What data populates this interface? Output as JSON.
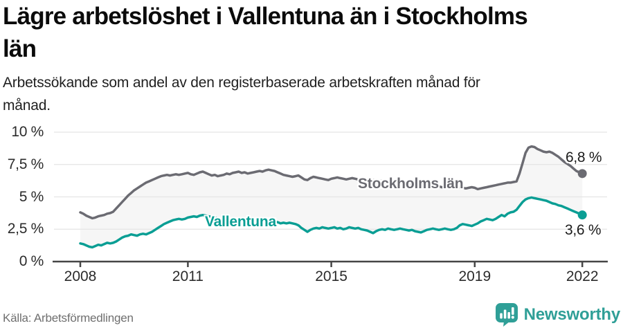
{
  "header": {
    "title_line1": "Lägre arbetslöshet i Vallentuna än i Stockholms",
    "title_line2": "län",
    "subtitle_line1": "Arbetssökande som andel av den registerbaserade arbetskraften månad för",
    "subtitle_line2": "månad."
  },
  "chart_data": {
    "type": "line",
    "title": "Lägre arbetslöshet i Vallentuna än i Stockholms län",
    "subtitle": "Arbetssökande som andel av den registerbaserade arbetskraften månad för månad.",
    "x_start_year": 2008,
    "frequency": "monthly",
    "ylim": [
      0,
      10
    ],
    "grid": true,
    "grid_color": "#e4e4e4",
    "axis_color": "#454545",
    "fill_between_color": "#f6f6f6",
    "y_ticks": [
      {
        "value": 0,
        "label": "0 %"
      },
      {
        "value": 2.5,
        "label": "2,5 %"
      },
      {
        "value": 5,
        "label": "5 %"
      },
      {
        "value": 7.5,
        "label": "7,5 %"
      },
      {
        "value": 10,
        "label": "10 %"
      }
    ],
    "x_ticks": [
      {
        "value": 2008,
        "label": "2008"
      },
      {
        "value": 2011,
        "label": "2011"
      },
      {
        "value": 2015,
        "label": "2015"
      },
      {
        "value": 2019,
        "label": "2019"
      },
      {
        "value": 2022,
        "label": "2022"
      }
    ],
    "series": [
      {
        "name": "Stockholms län",
        "color": "#6b6b72",
        "end_label": "6,8 %",
        "end_value": 6.8,
        "values": [
          3.8,
          3.7,
          3.55,
          3.45,
          3.35,
          3.4,
          3.5,
          3.55,
          3.6,
          3.7,
          3.75,
          3.85,
          4.1,
          4.35,
          4.6,
          4.85,
          5.1,
          5.3,
          5.5,
          5.65,
          5.8,
          5.95,
          6.1,
          6.2,
          6.3,
          6.4,
          6.5,
          6.6,
          6.65,
          6.7,
          6.65,
          6.7,
          6.75,
          6.7,
          6.75,
          6.8,
          6.85,
          6.75,
          6.7,
          6.8,
          6.9,
          6.95,
          6.85,
          6.75,
          6.65,
          6.7,
          6.6,
          6.65,
          6.7,
          6.8,
          6.75,
          6.85,
          6.9,
          6.95,
          6.85,
          6.9,
          6.8,
          6.85,
          6.9,
          6.95,
          7.0,
          6.95,
          7.05,
          7.1,
          7.05,
          7.0,
          6.9,
          6.8,
          6.7,
          6.65,
          6.6,
          6.55,
          6.6,
          6.65,
          6.5,
          6.35,
          6.3,
          6.45,
          6.55,
          6.5,
          6.45,
          6.4,
          6.35,
          6.3,
          6.4,
          6.45,
          6.5,
          6.45,
          6.4,
          6.35,
          6.4,
          6.45,
          6.4,
          6.35,
          6.3,
          6.35,
          6.3,
          6.25,
          6.3,
          6.25,
          6.2,
          6.25,
          6.2,
          6.15,
          6.2,
          6.15,
          6.1,
          6.15,
          6.1,
          6.05,
          6.0,
          6.05,
          6.0,
          5.95,
          5.9,
          5.95,
          5.9,
          5.85,
          5.9,
          5.85,
          5.8,
          5.75,
          5.7,
          5.75,
          5.7,
          5.65,
          5.7,
          5.75,
          5.7,
          5.65,
          5.7,
          5.75,
          5.7,
          5.6,
          5.65,
          5.7,
          5.75,
          5.8,
          5.85,
          5.9,
          5.95,
          6.0,
          6.05,
          6.1,
          6.1,
          6.15,
          6.2,
          6.8,
          7.6,
          8.4,
          8.8,
          8.9,
          8.85,
          8.7,
          8.6,
          8.5,
          8.45,
          8.5,
          8.4,
          8.25,
          8.1,
          7.9,
          7.7,
          7.55,
          7.4,
          7.2,
          7.0,
          6.9,
          6.8
        ]
      },
      {
        "name": "Vallentuna",
        "color": "#0a9e94",
        "end_label": "3,6 %",
        "end_value": 3.6,
        "values": [
          1.4,
          1.35,
          1.25,
          1.15,
          1.1,
          1.2,
          1.3,
          1.25,
          1.35,
          1.45,
          1.4,
          1.45,
          1.55,
          1.7,
          1.85,
          1.95,
          2.0,
          2.1,
          2.05,
          2.0,
          2.1,
          2.15,
          2.1,
          2.2,
          2.3,
          2.45,
          2.6,
          2.75,
          2.9,
          3.0,
          3.1,
          3.2,
          3.25,
          3.3,
          3.25,
          3.3,
          3.4,
          3.45,
          3.5,
          3.45,
          3.55,
          3.6,
          3.55,
          3.5,
          3.45,
          3.4,
          3.35,
          3.3,
          3.3,
          3.35,
          3.25,
          3.2,
          3.25,
          3.15,
          3.2,
          3.1,
          3.15,
          3.05,
          3.1,
          3.05,
          3.1,
          3.05,
          3.0,
          3.05,
          2.95,
          3.0,
          3.05,
          2.95,
          3.0,
          2.95,
          3.0,
          2.95,
          2.9,
          2.8,
          2.6,
          2.45,
          2.3,
          2.45,
          2.55,
          2.6,
          2.55,
          2.65,
          2.6,
          2.55,
          2.6,
          2.65,
          2.55,
          2.6,
          2.5,
          2.55,
          2.65,
          2.6,
          2.55,
          2.6,
          2.5,
          2.45,
          2.4,
          2.3,
          2.2,
          2.35,
          2.45,
          2.5,
          2.45,
          2.55,
          2.5,
          2.45,
          2.5,
          2.55,
          2.5,
          2.45,
          2.4,
          2.45,
          2.35,
          2.3,
          2.25,
          2.35,
          2.45,
          2.5,
          2.55,
          2.5,
          2.45,
          2.5,
          2.55,
          2.5,
          2.45,
          2.5,
          2.6,
          2.8,
          2.9,
          2.85,
          2.8,
          2.75,
          2.85,
          2.95,
          3.1,
          3.2,
          3.3,
          3.25,
          3.2,
          3.3,
          3.45,
          3.6,
          3.5,
          3.7,
          3.8,
          3.85,
          4.0,
          4.3,
          4.6,
          4.8,
          4.9,
          4.95,
          4.9,
          4.85,
          4.8,
          4.75,
          4.7,
          4.6,
          4.5,
          4.45,
          4.35,
          4.3,
          4.2,
          4.1,
          4.0,
          3.9,
          3.8,
          3.7,
          3.6
        ]
      }
    ]
  },
  "footer": {
    "source": "Källa: Arbetsförmedlingen",
    "brand": "Newsworthy",
    "brand_color": "#2f9f97"
  }
}
